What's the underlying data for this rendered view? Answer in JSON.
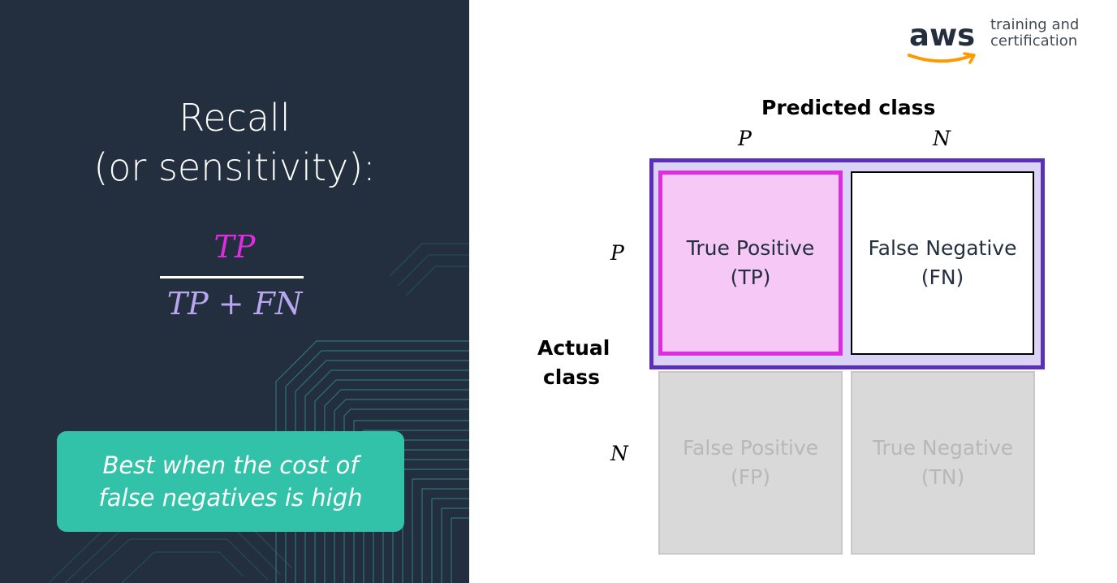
{
  "left_panel": {
    "title_line1": "Recall",
    "title_line2": "(or sensitivity):",
    "formula": {
      "numerator": "TP",
      "denominator": "TP + FN"
    },
    "callout": "Best when the cost of false negatives is high"
  },
  "logo": {
    "brand": "aws",
    "subtitle_line1": "training and",
    "subtitle_line2": "certification"
  },
  "matrix": {
    "predicted_label": "Predicted class",
    "actual_label_line1": "Actual",
    "actual_label_line2": "class",
    "col_labels": [
      "P",
      "N"
    ],
    "row_labels": [
      "P",
      "N"
    ],
    "cells": {
      "tp": {
        "line1": "True Positive",
        "line2": "(TP)"
      },
      "fn": {
        "line1": "False Negative",
        "line2": "(FN)"
      },
      "fp": {
        "line1": "False Positive",
        "line2": "(FP)"
      },
      "tn": {
        "line1": "True Negative",
        "line2": "(TN)"
      }
    }
  },
  "colors": {
    "panel_bg": "#232f3e",
    "numerator": "#e02ce0",
    "denominator": "#b9a6f0",
    "callout_bg": "#32c2a9",
    "highlight_border": "#5b2fb8",
    "tp_border": "#e02ce0",
    "aws_orange": "#ff9900"
  }
}
